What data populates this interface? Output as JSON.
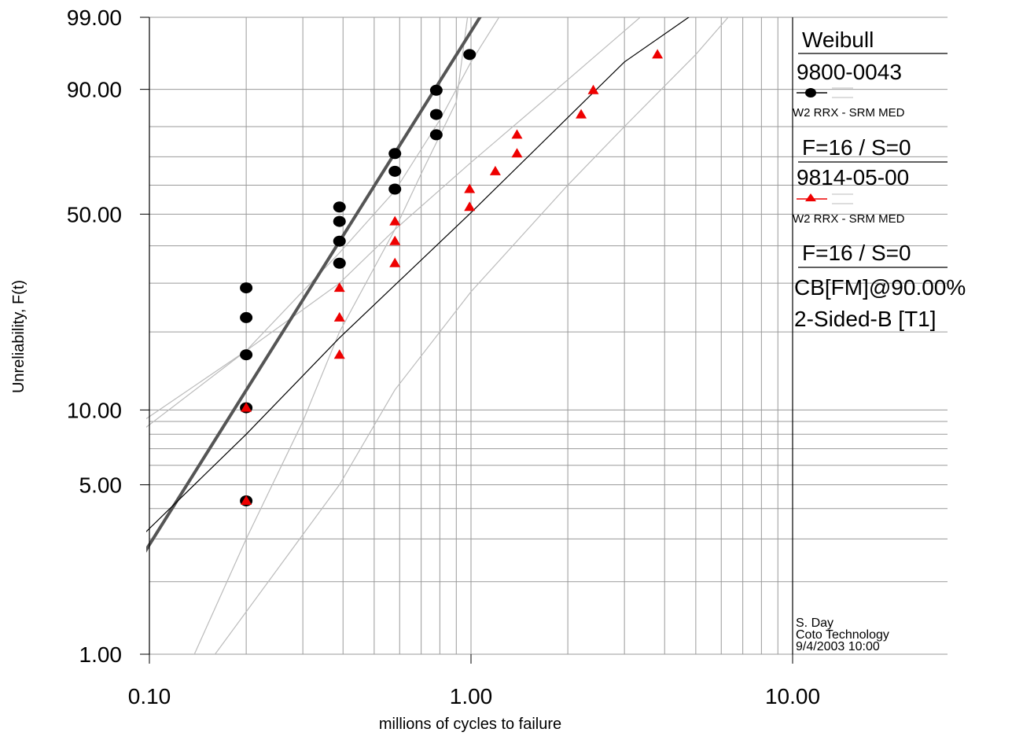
{
  "chart_data": {
    "type": "scatter",
    "scale": "weibull probability plot (log x, weibull y)",
    "xlabel": "millions of cycles to failure",
    "ylabel": "Unreliability, F(t)",
    "xlim": [
      0.1,
      30
    ],
    "ylim": [
      1,
      99
    ],
    "x_tick_labels": [
      "0.10",
      "1.00",
      "10.00"
    ],
    "x_ticks": [
      0.1,
      1,
      10
    ],
    "y_tick_labels": [
      "1.00",
      "5.00",
      "10.00",
      "50.00",
      "90.00",
      "99.00"
    ],
    "y_ticks": [
      1,
      5,
      10,
      50,
      90,
      99
    ],
    "x_grid": [
      0.1,
      0.2,
      0.3,
      0.4,
      0.5,
      0.6,
      0.7,
      0.8,
      0.9,
      1,
      2,
      3,
      4,
      5,
      6,
      7,
      8,
      9,
      10
    ],
    "y_grid": [
      1,
      2,
      3,
      4,
      5,
      6,
      7,
      8,
      9,
      10,
      20,
      30,
      40,
      50,
      60,
      70,
      80,
      90,
      99
    ],
    "series": [
      {
        "name": "9800-0043",
        "marker": "circle",
        "color": "#000000",
        "x": [
          0.2,
          0.2,
          0.2,
          0.2,
          0.2,
          0.39,
          0.39,
          0.39,
          0.39,
          0.58,
          0.58,
          0.58,
          0.78,
          0.78,
          0.78,
          0.99
        ],
        "y": [
          4.3,
          10.2,
          16.4,
          22.6,
          28.9,
          35.1,
          41.4,
          47.6,
          52.4,
          58.6,
          64.9,
          71.1,
          77.4,
          83.6,
          89.8,
          96.0
        ],
        "fit_line": {
          "points": [
            [
              0.095,
              2.55
            ],
            [
              1.09,
              99.2
            ]
          ],
          "color": "#555555",
          "width": 4
        },
        "confidence_bounds": [
          {
            "points": [
              [
                0.095,
                8.3
              ],
              [
                0.2,
                17.0
              ],
              [
                0.39,
                38.0
              ],
              [
                0.58,
                58.0
              ],
              [
                0.8,
                82.0
              ],
              [
                1.0,
                95.0
              ],
              [
                1.25,
                99.2
              ]
            ]
          },
          {
            "points": [
              [
                0.138,
                1.0
              ],
              [
                0.2,
                3.0
              ],
              [
                0.3,
                9.0
              ],
              [
                0.39,
                20.0
              ],
              [
                0.58,
                45.0
              ],
              [
                0.7,
                64.0
              ],
              [
                0.9,
                87.0
              ],
              [
                0.98,
                99.2
              ]
            ]
          }
        ]
      },
      {
        "name": "9814-05-00",
        "marker": "triangle",
        "color": "#ee0000",
        "x": [
          0.2,
          0.2,
          0.39,
          0.39,
          0.39,
          0.58,
          0.58,
          0.58,
          0.99,
          0.99,
          1.19,
          1.39,
          1.39,
          2.2,
          2.4,
          3.8
        ],
        "y": [
          4.3,
          10.2,
          16.4,
          22.6,
          28.9,
          35.1,
          41.4,
          47.6,
          52.4,
          58.6,
          64.9,
          71.1,
          77.4,
          83.6,
          89.8,
          96.0
        ],
        "fit_line": {
          "points": [
            [
              0.095,
              3.1
            ],
            [
              0.2,
              8.0
            ],
            [
              0.39,
              19.0
            ],
            [
              1.0,
              50.5
            ],
            [
              3.0,
              95.0
            ],
            [
              5.0,
              99.2
            ]
          ],
          "color": "#000000",
          "width": 1.2
        },
        "confidence_bounds": [
          {
            "points": [
              [
                0.095,
                9.0
              ],
              [
                0.2,
                17.0
              ],
              [
                0.39,
                30.0
              ],
              [
                0.58,
                45.0
              ],
              [
                1.0,
                68.0
              ],
              [
                2.0,
                92.0
              ],
              [
                3.5,
                99.2
              ]
            ]
          },
          {
            "points": [
              [
                0.16,
                1.0
              ],
              [
                0.39,
                5.0
              ],
              [
                0.58,
                12.0
              ],
              [
                1.0,
                28.0
              ],
              [
                2.0,
                60.0
              ],
              [
                3.0,
                80.0
              ],
              [
                5.0,
                96.0
              ],
              [
                6.5,
                99.2
              ]
            ]
          }
        ]
      }
    ],
    "legend": {
      "title": "Weibull",
      "entries": [
        {
          "name": "9800-0043",
          "description": "W2 RRX - SRM MED",
          "counts": "F=16 / S=0"
        },
        {
          "name": "9814-05-00",
          "description": "W2 RRX - SRM MED",
          "counts": "F=16 / S=0"
        }
      ],
      "bounds_line1": "CB[FM]@90.00%",
      "bounds_line2": "2-Sided-B [T1]"
    },
    "footer": {
      "author": "S. Day",
      "company": "Coto Technology",
      "datetime": "9/4/2003 10:00"
    },
    "colors": {
      "grid": "#9a9a9a",
      "frame": "#000000",
      "bound_line": "#bbbbbb",
      "red_marker": "#ee0000"
    }
  }
}
